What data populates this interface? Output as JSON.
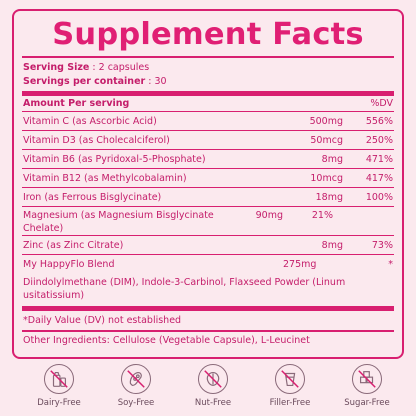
{
  "panel": {
    "title": "Supplement Facts",
    "serving_size_label": "Serving Size",
    "serving_size_value": ": 2 capsules",
    "servings_label": "Servings per container",
    "servings_value": ": 30",
    "amount_per_serving": "Amount Per serving",
    "dv_header": "%DV",
    "rows": [
      {
        "name": "Vitamin C (as Ascorbic Acid)",
        "amount": "500mg",
        "dv": "556%"
      },
      {
        "name": "Vitamin D3 (as Cholecalciferol)",
        "amount": "50mcg",
        "dv": "250%"
      },
      {
        "name": "Vitamin B6 (as Pyridoxal-5-Phosphate)",
        "amount": "8mg",
        "dv": "471%"
      },
      {
        "name": "Vitamin B12 (as Methylcobalamin)",
        "amount": "10mcg",
        "dv": "417%"
      },
      {
        "name": "Iron (as Ferrous Bisglycinate)",
        "amount": "18mg",
        "dv": "100%"
      },
      {
        "name": "Magnesium (as Magnesium Bisglycinate Chelate)",
        "amount": "90mg",
        "dv": "21%"
      },
      {
        "name": "Zinc (as Zinc Citrate)",
        "amount": "8mg",
        "dv": "73%"
      },
      {
        "name": "My HappyFlo Blend",
        "amount": "275mg",
        "dv": "*"
      }
    ],
    "blend_description": "Diindolylmethane (DIM), Indole-3-Carbinol, Flaxseed Powder (Linum usitatissium)",
    "dv_note": "*Daily Value (DV) not established",
    "other_ingredients": "Other Ingredients: Cellulose (Vegetable Capsule), L-Leucinet"
  },
  "badges": [
    {
      "label": "Dairy-Free",
      "icon": "dairy-free-icon"
    },
    {
      "label": "Soy-Free",
      "icon": "soy-free-icon"
    },
    {
      "label": "Nut-Free",
      "icon": "nut-free-icon"
    },
    {
      "label": "Filler-Free",
      "icon": "filler-free-icon"
    },
    {
      "label": "Sugar-Free",
      "icon": "sugar-free-icon"
    }
  ],
  "colors": {
    "background": "#fbe9ee",
    "accent": "#d81f70",
    "text": "#c41d6a",
    "badge": "#6a4a5c"
  }
}
